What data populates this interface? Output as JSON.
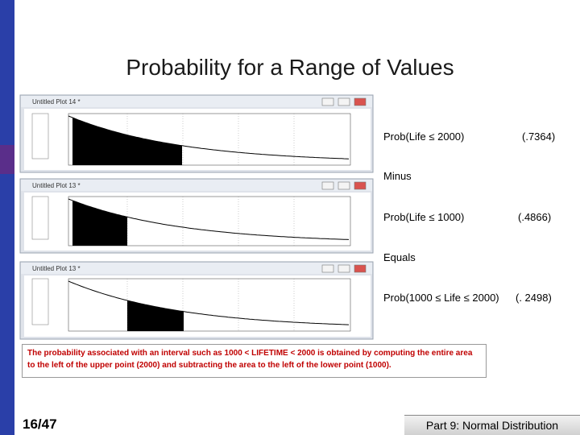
{
  "title": "Probability for a Range of Values",
  "plots": [
    {
      "window_title": "Untitled Plot 14 *"
    },
    {
      "window_title": "Untitled Plot 13 *"
    },
    {
      "window_title": "Untitled Plot 13 *"
    }
  ],
  "rows": [
    {
      "label": "Prob(Life ≤ 2000)",
      "value": "(.7364)"
    },
    {
      "label": "Prob(Life ≤ 1000)",
      "value": "(.4866)"
    },
    {
      "label": "Prob(1000 ≤ Life ≤ 2000)",
      "value": "(. 2498)"
    }
  ],
  "connectors": [
    "Minus",
    "Equals"
  ],
  "note": "The probability associated with an interval such as 1000 < LIFETIME < 2000 is obtained by computing the entire area to the left of the upper point (2000) and subtracting the area to the left of the lower point (1000).",
  "page_number": "16/47",
  "footer": "Part 9: Normal Distribution"
}
